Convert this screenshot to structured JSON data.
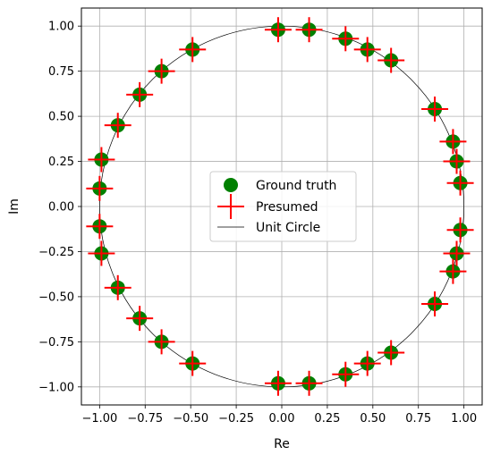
{
  "chart_data": {
    "type": "scatter",
    "title": "",
    "xlabel": "Re",
    "ylabel": "Im",
    "xlim": [
      -1.1,
      1.1
    ],
    "ylim": [
      -1.1,
      1.1
    ],
    "grid": true,
    "xticks": [
      -1.0,
      -0.75,
      -0.5,
      -0.25,
      0.0,
      0.25,
      0.5,
      0.75,
      1.0
    ],
    "yticks": [
      -1.0,
      -0.75,
      -0.5,
      -0.25,
      0.0,
      0.25,
      0.5,
      0.75,
      1.0
    ],
    "xtick_labels": [
      "−1.00",
      "−0.75",
      "−0.50",
      "−0.25",
      "0.00",
      "0.25",
      "0.50",
      "0.75",
      "1.00"
    ],
    "ytick_labels": [
      "−1.00",
      "−0.75",
      "−0.50",
      "−0.25",
      "0.00",
      "0.25",
      "0.50",
      "0.75",
      "1.00"
    ],
    "legend_position": "center",
    "colors": {
      "ground_truth": "#008000",
      "presumed": "#ff0000",
      "unit_circle": "#000000"
    },
    "series": [
      {
        "name": "Ground truth",
        "marker": "circle",
        "points": [
          [
            -0.02,
            0.98
          ],
          [
            0.15,
            0.98
          ],
          [
            0.35,
            0.93
          ],
          [
            0.47,
            0.87
          ],
          [
            0.6,
            0.81
          ],
          [
            0.84,
            0.54
          ],
          [
            0.94,
            0.36
          ],
          [
            0.96,
            0.25
          ],
          [
            0.98,
            0.13
          ],
          [
            0.98,
            -0.13
          ],
          [
            0.96,
            -0.26
          ],
          [
            0.94,
            -0.36
          ],
          [
            0.84,
            -0.54
          ],
          [
            0.6,
            -0.81
          ],
          [
            0.47,
            -0.87
          ],
          [
            0.35,
            -0.93
          ],
          [
            0.15,
            -0.98
          ],
          [
            -0.02,
            -0.98
          ],
          [
            -0.49,
            -0.87
          ],
          [
            -0.66,
            -0.75
          ],
          [
            -0.78,
            -0.62
          ],
          [
            -0.9,
            -0.45
          ],
          [
            -0.99,
            -0.26
          ],
          [
            -1.0,
            -0.11
          ],
          [
            -1.0,
            0.1
          ],
          [
            -0.99,
            0.26
          ],
          [
            -0.9,
            0.45
          ],
          [
            -0.78,
            0.62
          ],
          [
            -0.66,
            0.75
          ],
          [
            -0.49,
            0.87
          ]
        ]
      },
      {
        "name": "Presumed",
        "marker": "plus",
        "points": [
          [
            -0.02,
            0.98
          ],
          [
            0.15,
            0.98
          ],
          [
            0.35,
            0.93
          ],
          [
            0.47,
            0.87
          ],
          [
            0.6,
            0.81
          ],
          [
            0.84,
            0.54
          ],
          [
            0.94,
            0.36
          ],
          [
            0.96,
            0.25
          ],
          [
            0.98,
            0.13
          ],
          [
            0.98,
            -0.13
          ],
          [
            0.96,
            -0.26
          ],
          [
            0.94,
            -0.36
          ],
          [
            0.84,
            -0.54
          ],
          [
            0.6,
            -0.81
          ],
          [
            0.47,
            -0.87
          ],
          [
            0.35,
            -0.93
          ],
          [
            0.15,
            -0.98
          ],
          [
            -0.02,
            -0.98
          ],
          [
            -0.49,
            -0.87
          ],
          [
            -0.66,
            -0.75
          ],
          [
            -0.78,
            -0.62
          ],
          [
            -0.9,
            -0.45
          ],
          [
            -0.99,
            -0.26
          ],
          [
            -1.0,
            -0.11
          ],
          [
            -1.0,
            0.1
          ],
          [
            -0.99,
            0.26
          ],
          [
            -0.9,
            0.45
          ],
          [
            -0.78,
            0.62
          ],
          [
            -0.66,
            0.75
          ],
          [
            -0.49,
            0.87
          ]
        ]
      },
      {
        "name": "Unit Circle",
        "marker": "line",
        "radius": 1.0
      }
    ]
  }
}
